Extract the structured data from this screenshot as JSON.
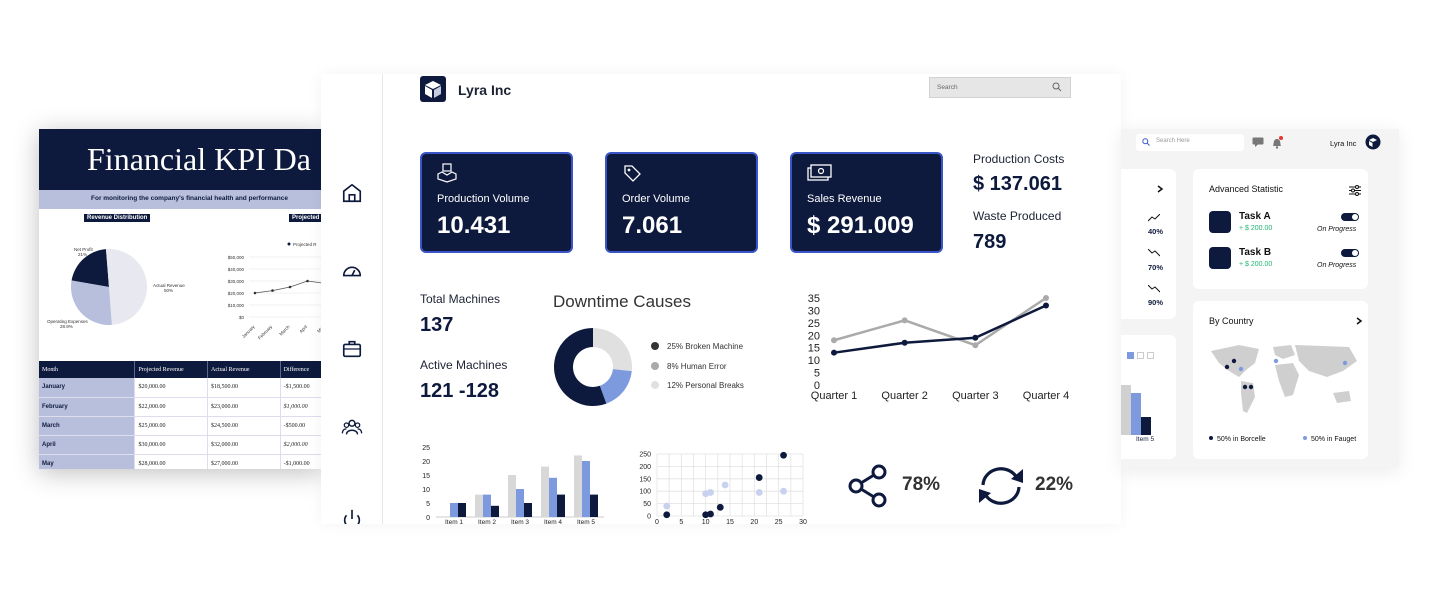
{
  "financial": {
    "title": "Financial KPI Da",
    "subtitle": "For monitoring the company's financial health and performance",
    "tag_revenue": "Revenue Distribution",
    "tag_projected": "Projected",
    "pie_labels": {
      "net": "Net Profit",
      "net_pct": "21%",
      "actual": "Actual Revenue",
      "actual_pct": "50%",
      "opex": "Operating Expenses",
      "opex_pct": "28.9%"
    },
    "y_ticks": [
      "$50,000",
      "$40,000",
      "$30,000",
      "$20,000",
      "$10,000",
      "$0"
    ],
    "x_ticks": [
      "January",
      "February",
      "March",
      "April",
      "May"
    ],
    "legend": "Projected R",
    "table": {
      "headers": [
        "Month",
        "Projected Revenue",
        "Actual Revenue",
        "Difference"
      ],
      "rows": [
        [
          "January",
          "$20,000.00",
          "$18,500.00",
          "-$1,500.00"
        ],
        [
          "February",
          "$22,000.00",
          "$23,000.00",
          "$1,000.00"
        ],
        [
          "March",
          "$25,000.00",
          "$24,500.00",
          "-$500.00"
        ],
        [
          "April",
          "$30,000.00",
          "$32,000.00",
          "$2,000.00"
        ],
        [
          "May",
          "$28,000.00",
          "$27,000.00",
          "-$1,000.00"
        ]
      ]
    }
  },
  "main": {
    "brand": "Lyra Inc",
    "search_placeholder": "Search",
    "kpis": [
      {
        "label": "Production Volume",
        "value": "10.431",
        "icon": "hands-box-icon"
      },
      {
        "label": "Order Volume",
        "value": "7.061",
        "icon": "tag-icon"
      },
      {
        "label": "Sales Revenue",
        "value": "$ 291.009",
        "icon": "money-icon"
      }
    ],
    "production_costs_label": "Production Costs",
    "production_costs_value": "$ 137.061",
    "waste_label": "Waste Produced",
    "waste_value": "789",
    "total_machines_label": "Total Machines",
    "total_machines_value": "137",
    "active_machines_label": "Active Machines",
    "active_machines_value": "121 -128",
    "downtime_title": "Downtime Causes",
    "downtime_legend": [
      "25% Broken Machine",
      "8% Human Error",
      "12% Personal Breaks"
    ],
    "share_pct": "78%",
    "refresh_pct": "22%",
    "colors": {
      "navy": "#0e1a3d",
      "blue": "#7e9ade",
      "gray": "#aaaaaa",
      "light": "#e0e0e0",
      "lightblue": "#c8d2ee"
    }
  },
  "right": {
    "search_placeholder": "Search Here",
    "brand": "Lyra Inc",
    "pcts": [
      "40%",
      "70%",
      "90%"
    ],
    "advanced_title": "Advanced Statistic",
    "tasks": [
      {
        "name": "Task A",
        "amount": "+ $ 200.00",
        "status": "On Progress"
      },
      {
        "name": "Task B",
        "amount": "+ $ 200.00",
        "status": "On Progress"
      }
    ],
    "country_title": "By Country",
    "country_legend": [
      "50% in Borcelle",
      "50% in Fauget"
    ],
    "item_label": "Item 5"
  },
  "chart_data": [
    {
      "type": "line",
      "categories": [
        "Quarter 1",
        "Quarter 2",
        "Quarter 3",
        "Quarter 4"
      ],
      "series": [
        {
          "values": [
            18,
            26,
            16,
            35
          ]
        },
        {
          "values": [
            13,
            17,
            19,
            32
          ]
        }
      ],
      "ylim": [
        0,
        35
      ],
      "yticks": [
        0,
        5,
        10,
        15,
        20,
        25,
        30,
        35
      ]
    },
    {
      "type": "pie",
      "labels": [
        "25% Broken Machine",
        "8% Human Error",
        "12% Personal Breaks"
      ],
      "values": [
        25,
        8,
        12
      ]
    },
    {
      "type": "bar",
      "categories": [
        "Item 1",
        "Item 2",
        "Item 3",
        "Item 4",
        "Item 5"
      ],
      "series": [
        {
          "values": [
            0,
            8,
            15,
            18,
            22
          ]
        },
        {
          "values": [
            5,
            8,
            10,
            14,
            20
          ]
        },
        {
          "values": [
            5,
            4,
            5,
            8,
            8
          ]
        }
      ],
      "ylim": [
        0,
        25
      ],
      "yticks": [
        0,
        5,
        10,
        15,
        20,
        25
      ]
    },
    {
      "type": "scatter",
      "series": [
        {
          "x": [
            2,
            10,
            11,
            13,
            21,
            26
          ],
          "y": [
            5,
            5,
            8,
            35,
            155,
            245
          ]
        },
        {
          "x": [
            2,
            10,
            11,
            14,
            21,
            26
          ],
          "y": [
            40,
            90,
            95,
            125,
            95,
            100
          ]
        }
      ],
      "xlim": [
        0,
        30
      ],
      "ylim": [
        0,
        250
      ],
      "xticks": [
        0,
        5,
        10,
        15,
        20,
        25,
        30
      ],
      "yticks": [
        0,
        50,
        100,
        150,
        200,
        250
      ]
    },
    {
      "type": "pie",
      "labels": [
        "Net Profit",
        "Actual Revenue",
        "Operating Expenses"
      ],
      "values": [
        21,
        50,
        28.9
      ]
    },
    {
      "type": "line",
      "categories": [
        "January",
        "February",
        "March",
        "April",
        "May"
      ],
      "series": [
        {
          "name": "Projected R",
          "values": [
            20000,
            22000,
            25000,
            30000,
            28000
          ]
        }
      ],
      "ylim": [
        0,
        50000
      ]
    }
  ]
}
